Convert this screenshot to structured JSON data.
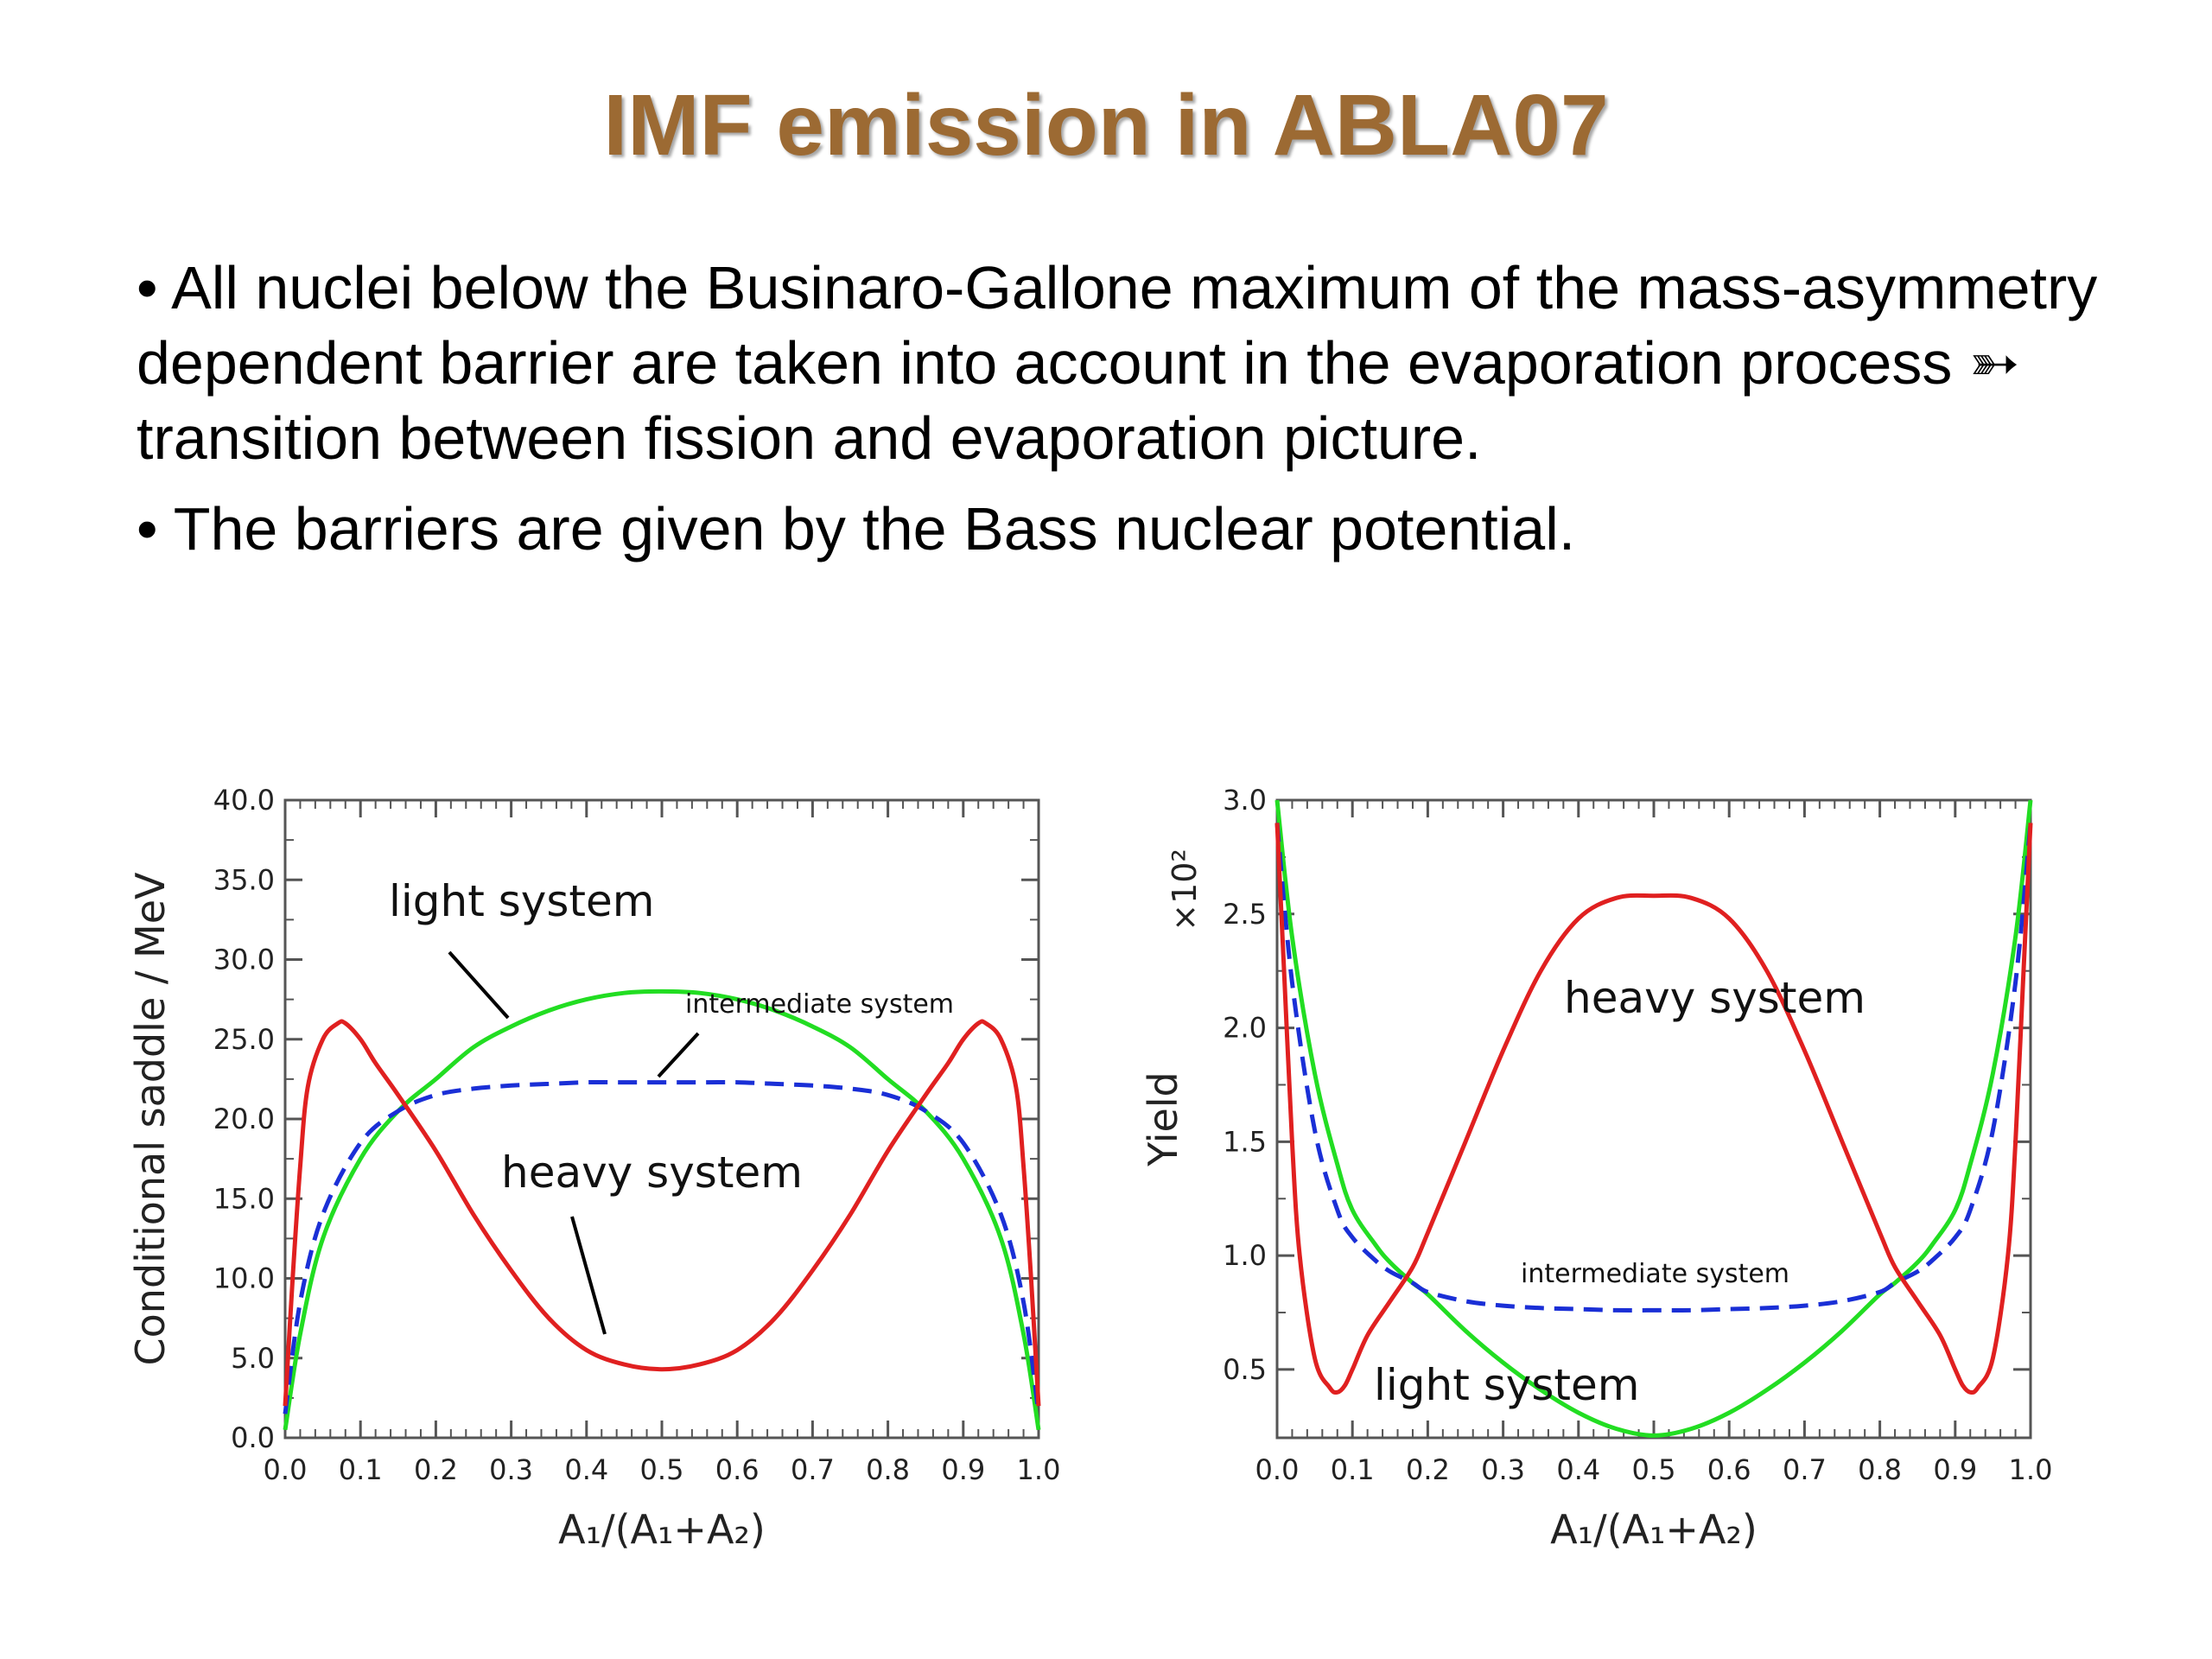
{
  "title": "IMF emission in ABLA07",
  "bullets": [
    "• All nuclei below the Businaro-Gallone maximum of the mass-asymmetry dependent barrier are taken into account in the evaporation process ➳ transition between fission and evaporation picture.",
    "• The barriers are given by the Bass nuclear potential."
  ],
  "colors": {
    "title": "#9c6a33",
    "light": "#22dd22",
    "intermediate": "#1a2fd6",
    "heavy": "#e02020"
  },
  "chart_data": [
    {
      "type": "line",
      "xlabel": "A₁/(A₁+A₂)",
      "ylabel": "Conditional saddle / MeV",
      "xlim": [
        0,
        1
      ],
      "ylim": [
        0,
        40
      ],
      "xticks": [
        "0.0",
        "0.1",
        "0.2",
        "0.3",
        "0.4",
        "0.5",
        "0.6",
        "0.7",
        "0.8",
        "0.9",
        "1.0"
      ],
      "yticks": [
        "0.0",
        "5.0",
        "10.0",
        "15.0",
        "20.0",
        "25.0",
        "30.0",
        "35.0",
        "40.0"
      ],
      "annotations": [
        "light system",
        "intermediate system",
        "heavy system"
      ],
      "series": [
        {
          "name": "light system",
          "color": "#22dd22",
          "style": "solid",
          "x": [
            0,
            0.02,
            0.05,
            0.1,
            0.15,
            0.2,
            0.25,
            0.3,
            0.35,
            0.4,
            0.45,
            0.5,
            0.55,
            0.6,
            0.65,
            0.7,
            0.75,
            0.8,
            0.85,
            0.9,
            0.95,
            0.98,
            1.0
          ],
          "y": [
            0.5,
            6.5,
            12.5,
            17.5,
            20.5,
            22.5,
            24.5,
            25.8,
            26.8,
            27.5,
            27.9,
            28.0,
            27.9,
            27.5,
            26.8,
            25.8,
            24.5,
            22.5,
            20.5,
            17.5,
            12.5,
            6.5,
            0.5
          ]
        },
        {
          "name": "intermediate system",
          "color": "#1a2fd6",
          "style": "dashed",
          "x": [
            0,
            0.02,
            0.05,
            0.1,
            0.15,
            0.2,
            0.25,
            0.3,
            0.35,
            0.4,
            0.45,
            0.5,
            0.55,
            0.6,
            0.65,
            0.7,
            0.75,
            0.8,
            0.85,
            0.9,
            0.95,
            0.98,
            1.0
          ],
          "y": [
            1.5,
            8.5,
            14.0,
            18.5,
            20.5,
            21.5,
            21.9,
            22.1,
            22.2,
            22.3,
            22.3,
            22.3,
            22.3,
            22.3,
            22.2,
            22.1,
            21.9,
            21.5,
            20.5,
            18.5,
            14.0,
            8.5,
            1.5
          ]
        },
        {
          "name": "heavy system",
          "color": "#e02020",
          "style": "solid",
          "x": [
            0,
            0.01,
            0.02,
            0.03,
            0.05,
            0.07,
            0.08,
            0.1,
            0.12,
            0.15,
            0.2,
            0.25,
            0.3,
            0.35,
            0.4,
            0.45,
            0.5,
            0.55,
            0.6,
            0.65,
            0.7,
            0.75,
            0.8,
            0.85,
            0.88,
            0.9,
            0.92,
            0.93,
            0.95,
            0.97,
            0.98,
            0.99,
            1.0
          ],
          "y": [
            2.0,
            10.0,
            17.0,
            22.0,
            25.0,
            26.0,
            26.0,
            25.0,
            23.5,
            21.5,
            18.0,
            14.0,
            10.5,
            7.5,
            5.5,
            4.6,
            4.3,
            4.6,
            5.5,
            7.5,
            10.5,
            14.0,
            18.0,
            21.5,
            23.5,
            25.0,
            26.0,
            26.0,
            25.0,
            22.0,
            17.0,
            10.0,
            2.0
          ]
        }
      ]
    },
    {
      "type": "line",
      "xlabel": "A₁/(A₁+A₂)",
      "ylabel": "Yield",
      "scale_label": "×10²",
      "xlim": [
        0,
        1
      ],
      "ylim": [
        0.2,
        3.0
      ],
      "xticks": [
        "0.0",
        "0.1",
        "0.2",
        "0.3",
        "0.4",
        "0.5",
        "0.6",
        "0.7",
        "0.8",
        "0.9",
        "1.0"
      ],
      "yticks": [
        "0.5",
        "1.0",
        "1.5",
        "2.0",
        "2.5",
        "3.0"
      ],
      "annotations": [
        "heavy system",
        "intermediate system",
        "light system"
      ],
      "series": [
        {
          "name": "light system",
          "color": "#22dd22",
          "style": "solid",
          "x": [
            0,
            0.02,
            0.05,
            0.08,
            0.1,
            0.13,
            0.15,
            0.18,
            0.2,
            0.25,
            0.3,
            0.35,
            0.4,
            0.45,
            0.5,
            0.55,
            0.6,
            0.65,
            0.7,
            0.75,
            0.8,
            0.82,
            0.85,
            0.87,
            0.9,
            0.92,
            0.95,
            0.98,
            1.0
          ],
          "y": [
            3.0,
            2.4,
            1.8,
            1.4,
            1.2,
            1.05,
            0.97,
            0.88,
            0.83,
            0.67,
            0.53,
            0.41,
            0.31,
            0.24,
            0.21,
            0.24,
            0.31,
            0.41,
            0.53,
            0.67,
            0.83,
            0.88,
            0.97,
            1.05,
            1.2,
            1.4,
            1.8,
            2.4,
            3.0
          ]
        },
        {
          "name": "intermediate system",
          "color": "#1a2fd6",
          "style": "dashed",
          "x": [
            0,
            0.02,
            0.05,
            0.08,
            0.1,
            0.13,
            0.15,
            0.18,
            0.2,
            0.25,
            0.3,
            0.35,
            0.4,
            0.45,
            0.5,
            0.55,
            0.6,
            0.65,
            0.7,
            0.75,
            0.8,
            0.82,
            0.85,
            0.87,
            0.9,
            0.92,
            0.95,
            0.98,
            1.0
          ],
          "y": [
            2.9,
            2.2,
            1.55,
            1.2,
            1.08,
            0.98,
            0.93,
            0.88,
            0.84,
            0.8,
            0.78,
            0.77,
            0.765,
            0.76,
            0.76,
            0.76,
            0.765,
            0.77,
            0.78,
            0.8,
            0.84,
            0.88,
            0.93,
            0.98,
            1.08,
            1.2,
            1.55,
            2.2,
            2.9
          ]
        },
        {
          "name": "heavy system",
          "color": "#e02020",
          "style": "solid",
          "x": [
            0,
            0.01,
            0.02,
            0.03,
            0.05,
            0.07,
            0.08,
            0.09,
            0.1,
            0.12,
            0.15,
            0.18,
            0.2,
            0.25,
            0.3,
            0.35,
            0.4,
            0.45,
            0.5,
            0.55,
            0.6,
            0.65,
            0.7,
            0.75,
            0.8,
            0.82,
            0.85,
            0.88,
            0.9,
            0.91,
            0.92,
            0.93,
            0.95,
            0.97,
            0.98,
            0.99,
            1.0
          ],
          "y": [
            2.9,
            2.2,
            1.5,
            1.0,
            0.55,
            0.42,
            0.4,
            0.43,
            0.5,
            0.65,
            0.8,
            0.95,
            1.1,
            1.5,
            1.9,
            2.25,
            2.48,
            2.57,
            2.58,
            2.57,
            2.48,
            2.25,
            1.9,
            1.5,
            1.1,
            0.95,
            0.8,
            0.65,
            0.5,
            0.43,
            0.4,
            0.42,
            0.55,
            1.0,
            1.5,
            2.2,
            2.9
          ]
        }
      ]
    }
  ]
}
